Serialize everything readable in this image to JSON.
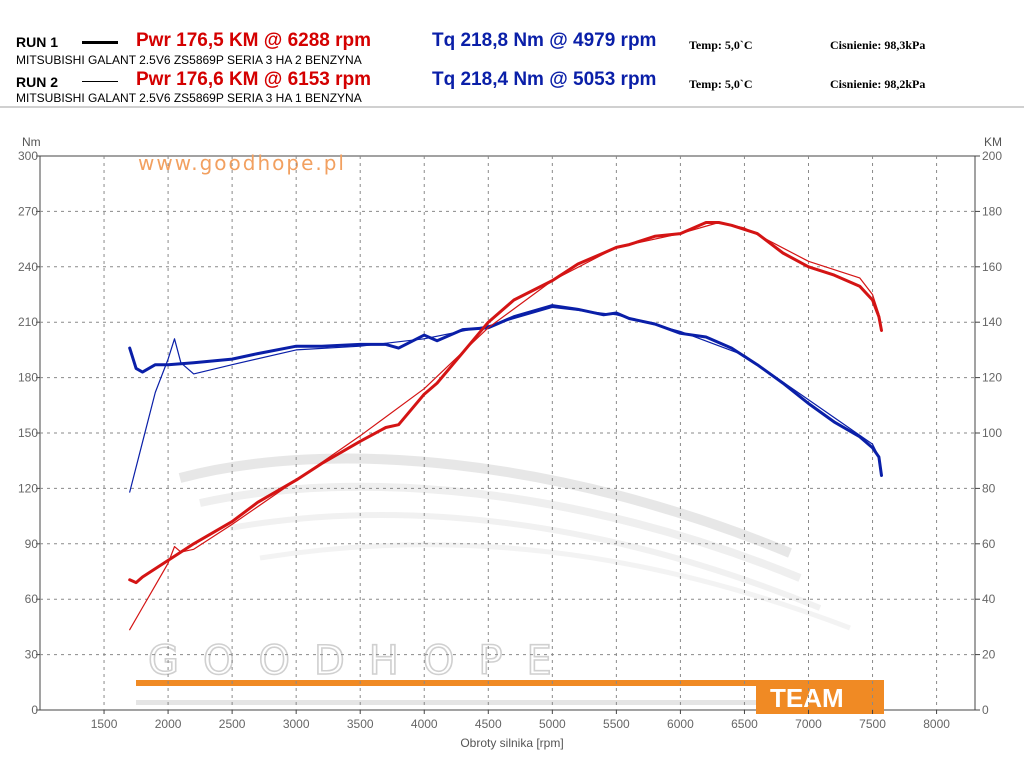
{
  "runs": [
    {
      "label": "RUN 1",
      "car": "MITSUBISHI GALANT 2.5V6 ZS5869P SERIA 3 HA 2 BENZYNA",
      "pwr": "Pwr  176,5 KM @ 6288 rpm",
      "tq": "Tq 218,8 Nm @ 4979 rpm",
      "temp": "Temp: 5,0`C",
      "pressure": "Cisnienie: 98,3kPa"
    },
    {
      "label": "RUN 2",
      "car": "MITSUBISHI GALANT 2.5V6 ZS5869P SERIA 3 HA 1 BENZYNA",
      "pwr": "Pwr  176,6 KM @ 6153 rpm",
      "tq": "Tq 218,4 Nm @ 5053 rpm",
      "temp": "Temp: 5,0`C",
      "pressure": "Cisnienie: 98,2kPa"
    }
  ],
  "watermark": {
    "site": "www.goodhope.pl",
    "brand": "GOODHOPE",
    "team": "TEAM"
  },
  "colors": {
    "power": "#d41414",
    "torque": "#0a1fa8",
    "grid": "#8a8a8a",
    "accent": "#f08a24"
  },
  "chart_data": {
    "type": "line",
    "xlabel": "Obroty silnika [rpm]",
    "ylabel_left": "Nm",
    "ylabel_right": "KM",
    "xlim": [
      1000,
      8300
    ],
    "ylim_left": [
      0,
      300
    ],
    "ylim_right": [
      0,
      200
    ],
    "xticks": [
      1500,
      2000,
      2500,
      3000,
      3500,
      4000,
      4500,
      5000,
      5500,
      6000,
      6500,
      7000,
      7500,
      8000
    ],
    "yticks_left": [
      0,
      30,
      60,
      90,
      120,
      150,
      180,
      210,
      240,
      270,
      300
    ],
    "yticks_right": [
      0,
      20,
      40,
      60,
      80,
      100,
      120,
      140,
      160,
      180,
      200
    ],
    "grid": true,
    "series": [
      {
        "run": 1,
        "kind": "torque",
        "axis": "left",
        "x": [
          1700,
          1750,
          1800,
          1900,
          2000,
          2200,
          2500,
          2700,
          3000,
          3200,
          3500,
          3700,
          3800,
          4000,
          4100,
          4300,
          4500,
          4700,
          5000,
          5200,
          5400,
          5500,
          5600,
          5800,
          6000,
          6200,
          6400,
          6600,
          6800,
          7000,
          7200,
          7400,
          7500,
          7550,
          7570
        ],
        "y": [
          196,
          185,
          183,
          187,
          187,
          188,
          190,
          193,
          197,
          197,
          198,
          198,
          196,
          203,
          200,
          206,
          207,
          213,
          219,
          217,
          214,
          215,
          212,
          209,
          204,
          202,
          196,
          187,
          177,
          166,
          156,
          148,
          142,
          137,
          127
        ]
      },
      {
        "run": 2,
        "kind": "torque",
        "axis": "left",
        "x": [
          1700,
          1800,
          1900,
          2000,
          2050,
          2100,
          2200,
          2500,
          3000,
          3500,
          4000,
          4500,
          5000,
          5500,
          6000,
          6500,
          7000,
          7500,
          7550
        ],
        "y": [
          118,
          145,
          172,
          190,
          201,
          188,
          182,
          187,
          195,
          197,
          201,
          208,
          218,
          214,
          205,
          192,
          168,
          144,
          137
        ]
      },
      {
        "run": 1,
        "kind": "power",
        "axis": "right",
        "x": [
          1700,
          1750,
          1800,
          2000,
          2200,
          2500,
          2700,
          3000,
          3200,
          3500,
          3700,
          3800,
          4000,
          4100,
          4300,
          4500,
          4700,
          5000,
          5200,
          5400,
          5500,
          5600,
          5800,
          6000,
          6200,
          6300,
          6400,
          6600,
          6800,
          7000,
          7200,
          7400,
          7500,
          7550,
          7570
        ],
        "y": [
          47,
          46,
          48,
          54,
          60,
          68,
          75,
          83,
          89,
          97,
          102,
          103,
          114,
          118,
          129,
          140,
          148,
          155,
          161,
          165,
          167,
          168,
          171,
          172,
          176,
          176,
          175,
          172,
          165,
          160,
          157,
          153,
          148,
          142,
          137
        ]
      },
      {
        "run": 2,
        "kind": "power",
        "axis": "right",
        "x": [
          1700,
          1800,
          1900,
          2000,
          2050,
          2100,
          2200,
          2500,
          3000,
          3500,
          4000,
          4500,
          5000,
          5500,
          6000,
          6300,
          6500,
          7000,
          7400,
          7500,
          7550
        ],
        "y": [
          29,
          37,
          45,
          53,
          59,
          57,
          58,
          67,
          83,
          99,
          116,
          138,
          155,
          167,
          172,
          176,
          174,
          162,
          156,
          150,
          143
        ]
      }
    ]
  }
}
